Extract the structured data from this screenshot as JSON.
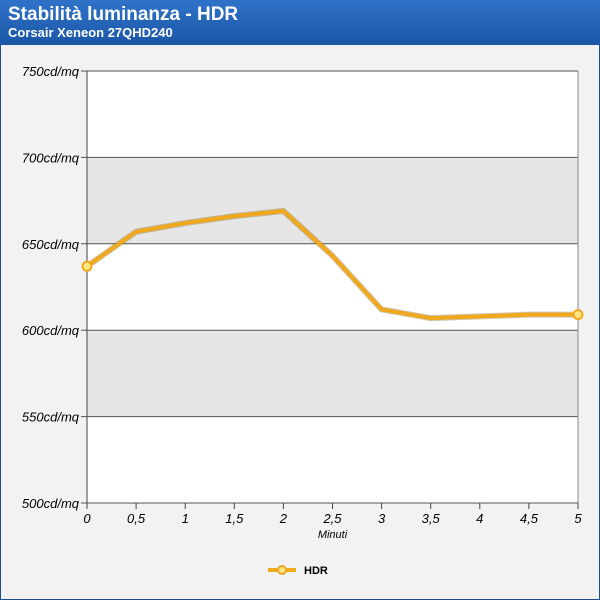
{
  "header": {
    "title": "Stabilità luminanza - HDR",
    "subtitle": "Corsair Xeneon 27QHD240"
  },
  "chart_data": {
    "type": "line",
    "title": "Stabilità luminanza - HDR",
    "subtitle": "Corsair Xeneon 27QHD240",
    "xlabel": "Minuti",
    "ylabel": "",
    "x": [
      0,
      0.5,
      1,
      1.5,
      2,
      2.5,
      3,
      3.5,
      4,
      4.5,
      5
    ],
    "x_tick_labels": [
      "0",
      "0,5",
      "1",
      "1,5",
      "2",
      "2,5",
      "3",
      "3,5",
      "4",
      "4,5",
      "5"
    ],
    "y_ticks": [
      500,
      550,
      600,
      650,
      700,
      750
    ],
    "y_tick_labels": [
      "500cd/mq",
      "550cd/mq",
      "600cd/mq",
      "650cd/mq",
      "700cd/mq",
      "750cd/mq"
    ],
    "xlim": [
      0,
      5
    ],
    "ylim": [
      500,
      750
    ],
    "grid": true,
    "legend_position": "bottom",
    "series": [
      {
        "name": "HDR",
        "color": "#f0a81e",
        "values": [
          637,
          657,
          662,
          666,
          669,
          643,
          612,
          607,
          608,
          609,
          609
        ]
      }
    ]
  }
}
